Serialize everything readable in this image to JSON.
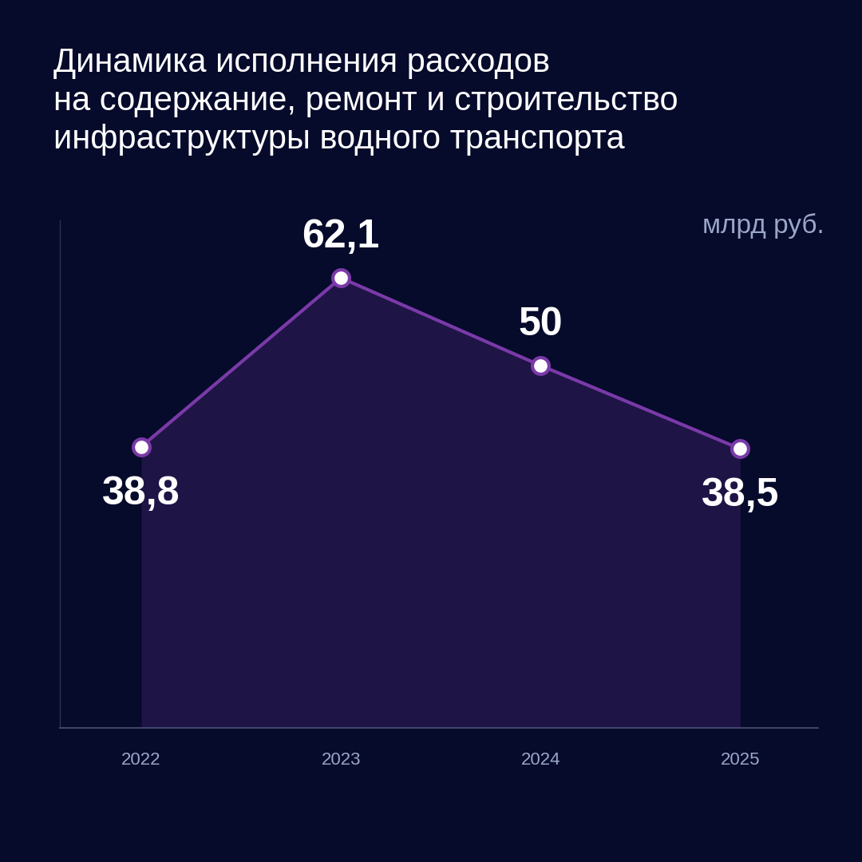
{
  "chart_data": {
    "type": "line",
    "title": "Динамика исполнения расходов\nна содержание, ремонт и строительство\nинфраструктуры водного транспорта",
    "unit": "млрд руб.",
    "categories": [
      "2022",
      "2023",
      "2024",
      "2025"
    ],
    "values": [
      38.8,
      62.1,
      50,
      38.5
    ],
    "value_labels": [
      "38,8",
      "62,1",
      "50",
      "38,5"
    ],
    "color": "#7a3aa8",
    "marker": "o",
    "line_style": "solid",
    "ylim": [
      0,
      70
    ],
    "yticks": [],
    "data_labels": true,
    "tick_labels": "x",
    "grid": false
  }
}
